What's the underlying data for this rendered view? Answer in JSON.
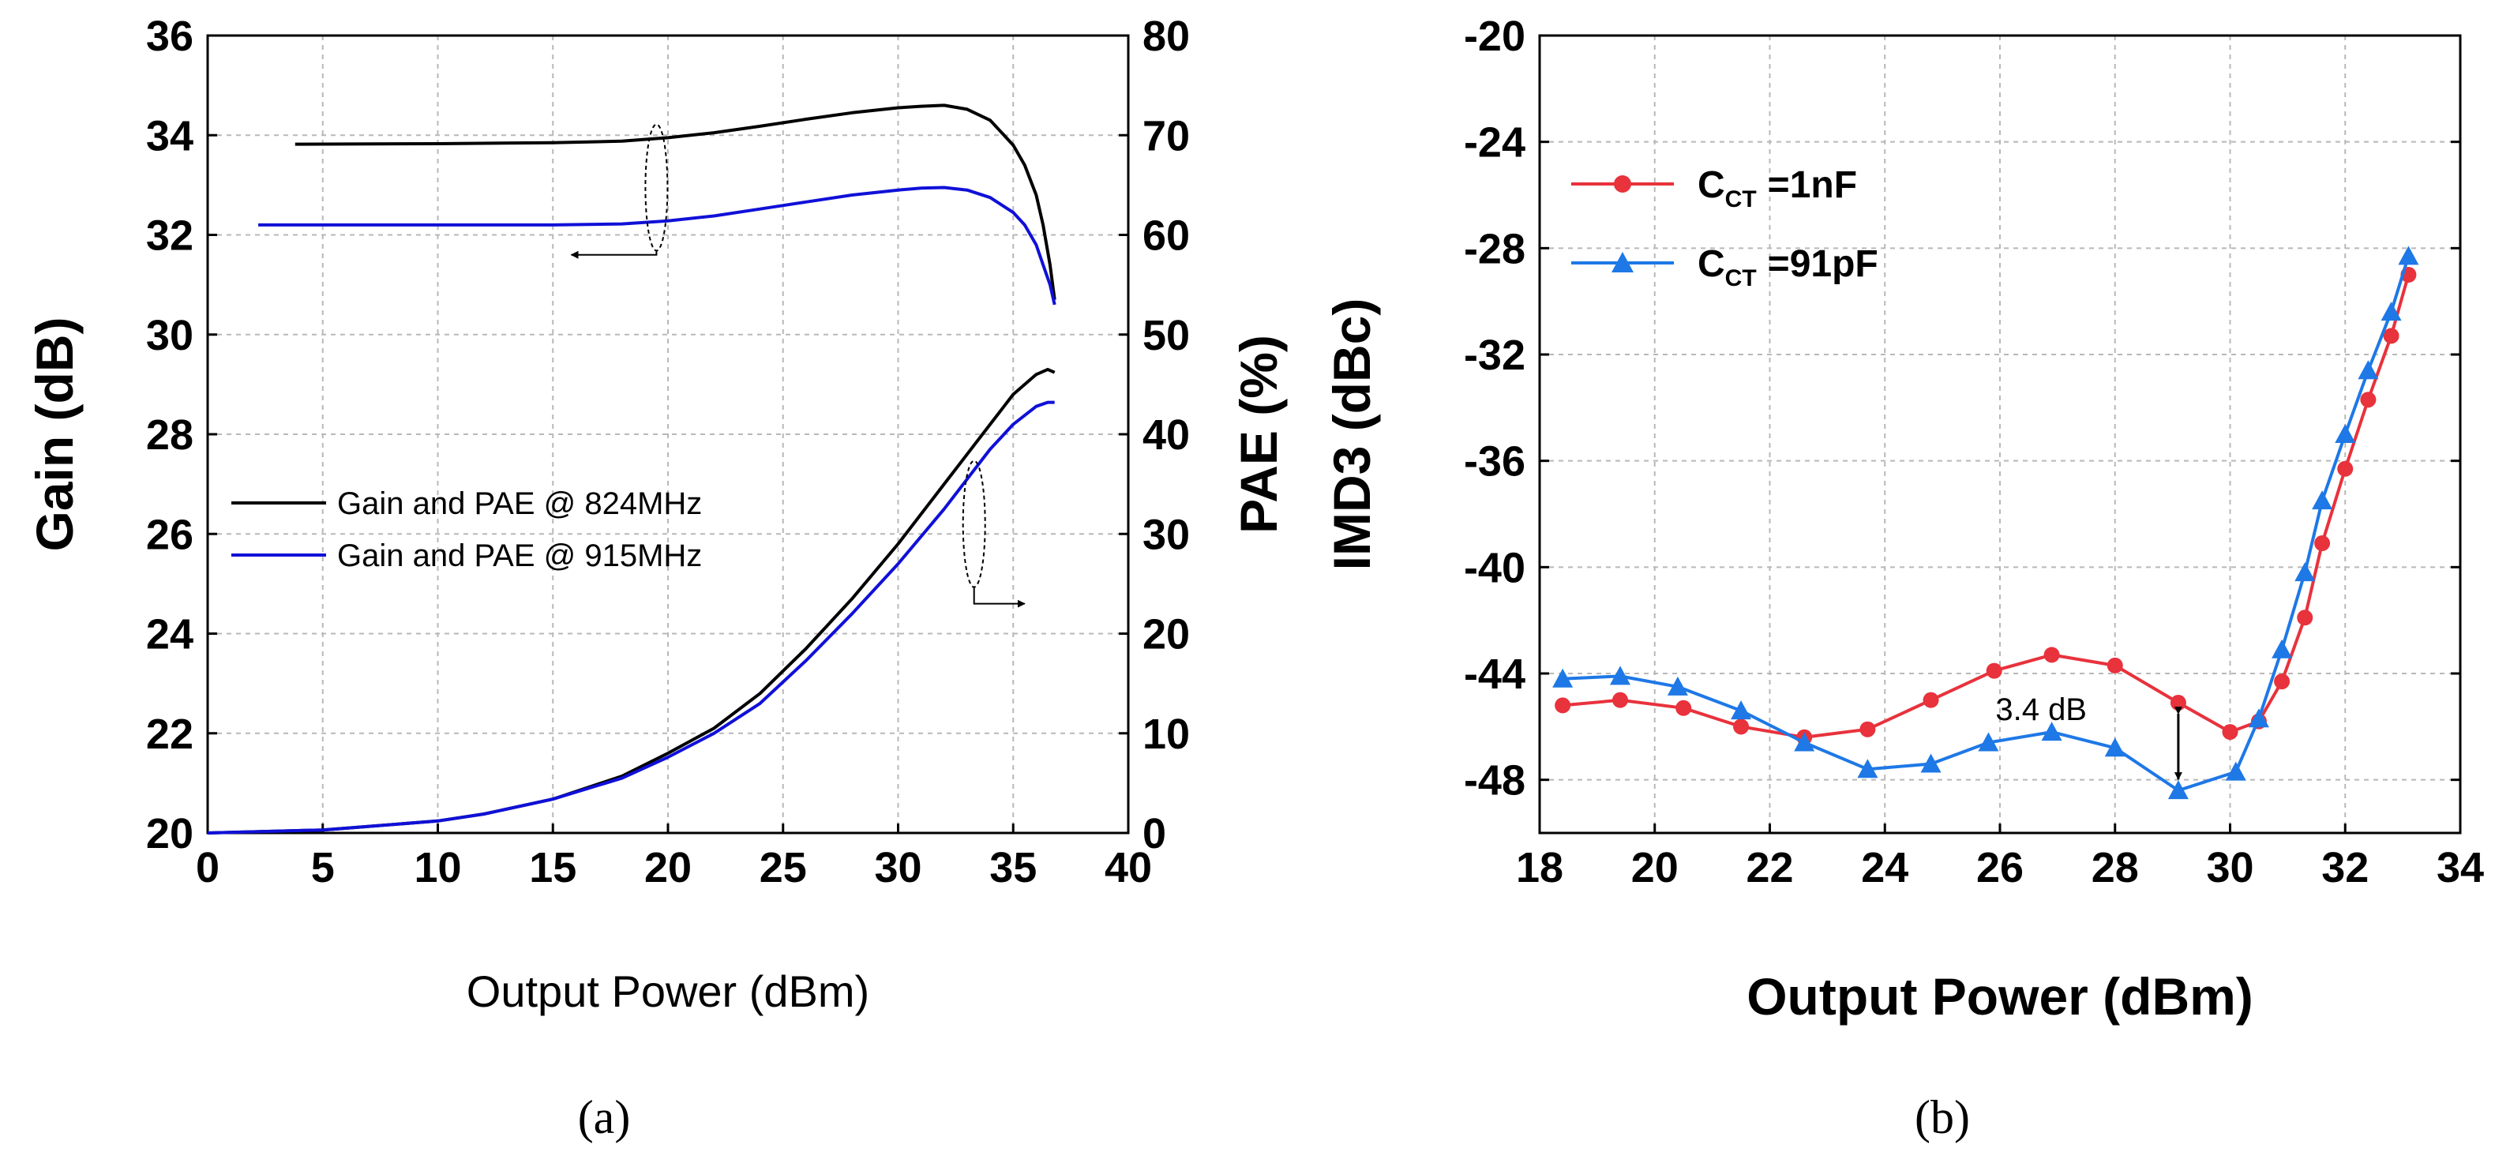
{
  "chart_data": [
    {
      "panel_label": "(a)",
      "type": "line",
      "xlabel": "Output Power (dBm)",
      "ylabel": "Gain (dB)",
      "ylabel_right": "PAE (%)",
      "xlim": [
        0,
        40
      ],
      "ylim": [
        20,
        36
      ],
      "ylim_right": [
        0,
        80
      ],
      "xticks": [
        "0",
        "5",
        "10",
        "15",
        "20",
        "25",
        "30",
        "35",
        "40"
      ],
      "yticks": [
        "20",
        "22",
        "24",
        "26",
        "28",
        "30",
        "32",
        "34",
        "36"
      ],
      "yticks_right": [
        "0",
        "10",
        "20",
        "30",
        "40",
        "50",
        "60",
        "70",
        "80"
      ],
      "grid": true,
      "legend_position": "center-left",
      "series": [
        {
          "name": "Gain and PAE @ 824MHz",
          "quantity": "Gain",
          "axis": "left",
          "color": "#000000",
          "x": [
            3.8,
            10,
            15,
            18,
            20,
            22,
            24,
            26,
            28,
            30,
            31,
            32,
            33,
            34,
            35,
            35.5,
            36,
            36.3,
            36.6,
            36.8
          ],
          "y": [
            33.82,
            33.83,
            33.85,
            33.88,
            33.95,
            34.05,
            34.18,
            34.32,
            34.45,
            34.55,
            34.58,
            34.6,
            34.52,
            34.3,
            33.8,
            33.4,
            32.8,
            32.2,
            31.4,
            30.7
          ]
        },
        {
          "name": "Gain and PAE @ 915MHz",
          "quantity": "Gain",
          "axis": "left",
          "color": "#1010d8",
          "x": [
            2.2,
            10,
            15,
            18,
            20,
            22,
            24,
            26,
            28,
            30,
            31,
            32,
            33,
            34,
            35,
            35.5,
            36,
            36.3,
            36.6,
            36.8
          ],
          "y": [
            32.2,
            32.2,
            32.2,
            32.22,
            32.28,
            32.38,
            32.52,
            32.66,
            32.8,
            32.9,
            32.94,
            32.95,
            32.9,
            32.75,
            32.45,
            32.2,
            31.8,
            31.4,
            31.0,
            30.6
          ]
        },
        {
          "name": "Gain and PAE @ 824MHz",
          "quantity": "PAE",
          "axis": "right",
          "color": "#000000",
          "x": [
            0,
            5,
            10,
            12,
            15,
            18,
            20,
            22,
            24,
            26,
            28,
            30,
            32,
            33,
            34,
            35,
            36,
            36.5,
            36.8
          ],
          "y": [
            0,
            0.3,
            1.2,
            1.9,
            3.4,
            5.7,
            8.0,
            10.5,
            14.0,
            18.5,
            23.5,
            29.0,
            35.0,
            38.0,
            41.0,
            44.0,
            46.0,
            46.5,
            46.2
          ]
        },
        {
          "name": "Gain and PAE @ 915MHz",
          "quantity": "PAE",
          "axis": "right",
          "color": "#1010d8",
          "x": [
            0,
            5,
            10,
            12,
            15,
            18,
            20,
            22,
            24,
            26,
            28,
            30,
            32,
            33,
            34,
            35,
            36,
            36.5,
            36.8
          ],
          "y": [
            0,
            0.3,
            1.2,
            1.9,
            3.4,
            5.5,
            7.6,
            10.0,
            13.0,
            17.3,
            22.0,
            27.0,
            32.5,
            35.5,
            38.5,
            41.0,
            42.8,
            43.2,
            43.2
          ]
        }
      ],
      "annotations": [
        {
          "type": "ellipse-arrow",
          "target_axis": "left",
          "center": [
            19.5,
            32.95
          ],
          "arrow_to": [
            15.8,
            31.6
          ]
        },
        {
          "type": "ellipse-arrow",
          "target_axis": "right",
          "center": [
            33.3,
            31.0
          ],
          "arrow_to": [
            35.5,
            23.0
          ]
        }
      ]
    },
    {
      "panel_label": "(b)",
      "type": "line",
      "xlabel": "Output Power (dBm)",
      "ylabel": "IMD3 (dBc)",
      "xlim": [
        18,
        34
      ],
      "ylim": [
        -50,
        -20
      ],
      "xticks": [
        "18",
        "20",
        "22",
        "24",
        "26",
        "28",
        "30",
        "32",
        "34"
      ],
      "yticks": [
        "-20",
        "-24",
        "-28",
        "-32",
        "-36",
        "-40",
        "-44",
        "-48"
      ],
      "grid": true,
      "legend_position": "top-left",
      "series": [
        {
          "name": "C",
          "subscript": "CT",
          "value_text": "=1nF",
          "marker": "circle",
          "color": "#e8323c",
          "x": [
            18.4,
            19.4,
            20.5,
            21.5,
            22.6,
            23.7,
            24.8,
            25.9,
            26.9,
            28.0,
            29.1,
            30.0,
            30.5,
            30.9,
            31.3,
            31.6,
            32.0,
            32.4,
            32.8,
            33.1
          ],
          "y": [
            -45.2,
            -45.0,
            -45.3,
            -46.0,
            -46.4,
            -46.1,
            -45.0,
            -43.9,
            -43.3,
            -43.7,
            -45.1,
            -46.2,
            -45.8,
            -44.3,
            -41.9,
            -39.1,
            -36.3,
            -33.7,
            -31.3,
            -29.0
          ]
        },
        {
          "name": "C",
          "subscript": "CT",
          "value_text": "=91pF",
          "marker": "triangle",
          "color": "#1e78e6",
          "x": [
            18.4,
            19.4,
            20.4,
            21.5,
            22.6,
            23.7,
            24.8,
            25.8,
            26.9,
            28.0,
            29.1,
            30.1,
            30.5,
            30.9,
            31.3,
            31.6,
            32.0,
            32.4,
            32.8,
            33.1
          ],
          "y": [
            -44.2,
            -44.1,
            -44.5,
            -45.4,
            -46.6,
            -47.6,
            -47.4,
            -46.6,
            -46.2,
            -46.8,
            -48.4,
            -47.7,
            -45.7,
            -43.1,
            -40.2,
            -37.5,
            -35.0,
            -32.6,
            -30.4,
            -28.3
          ]
        }
      ],
      "annotations": [
        {
          "type": "double-arrow",
          "text": "3.4 dB",
          "x": 29.1,
          "y_from": -45.1,
          "y_to": -48.4
        }
      ]
    }
  ]
}
